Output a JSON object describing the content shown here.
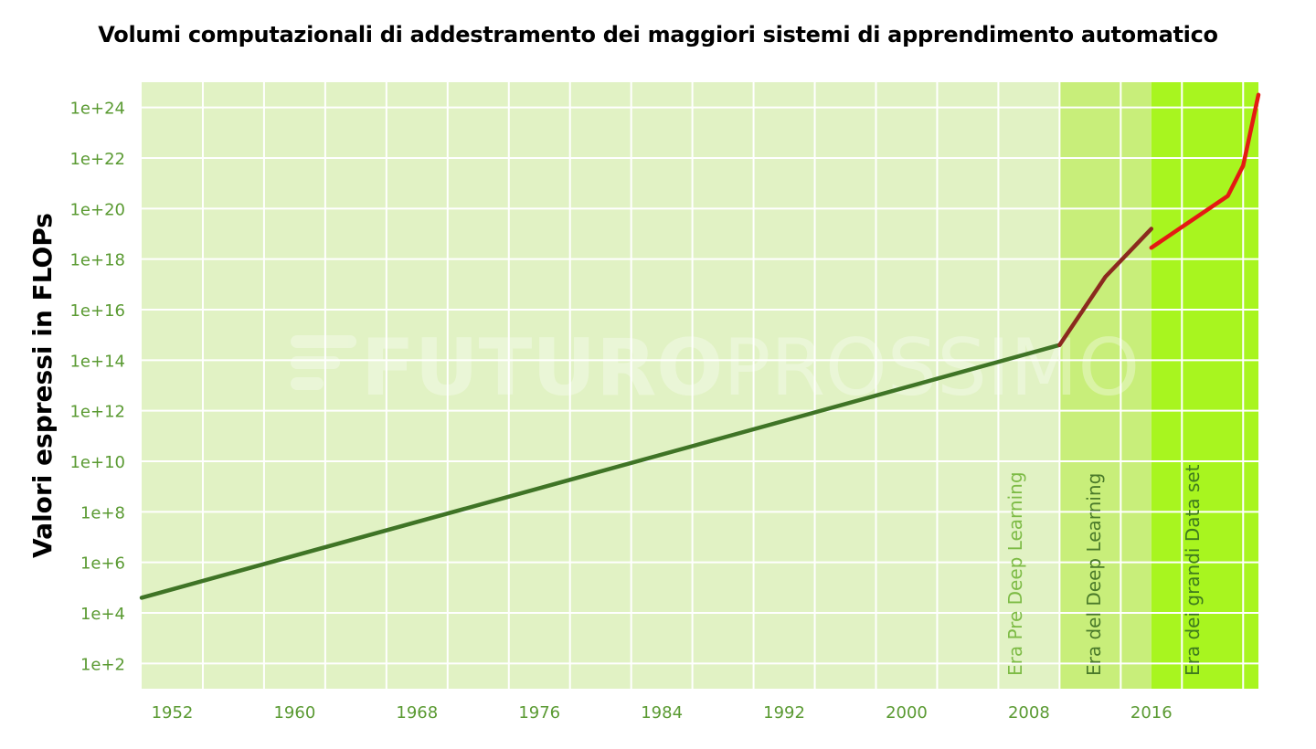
{
  "chart_data": {
    "type": "line",
    "title": "Volumi computazionali di addestramento dei maggiori sistemi di apprendimento automatico",
    "xlabel": "",
    "ylabel": "Valori espressi in FLOPs",
    "y_scale": "log10",
    "xlim": [
      1950,
      2023
    ],
    "ylim_exponent": [
      1,
      25
    ],
    "grid": true,
    "legend": "none",
    "x_ticks": [
      "1952",
      "1960",
      "1968",
      "1976",
      "1984",
      "1992",
      "2000",
      "2008",
      "2016"
    ],
    "y_ticks": [
      "1e+2",
      "1e+4",
      "1e+6",
      "1e+8",
      "1e+10",
      "1e+12",
      "1e+14",
      "1e+16",
      "1e+18",
      "1e+20",
      "1e+22",
      "1e+24"
    ],
    "eras": [
      {
        "label": "Era Pre Deep Learning",
        "x_start": 1950,
        "x_end": 2010,
        "color": "#e1f2c4",
        "label_color": "#7dbb45"
      },
      {
        "label": "Era del Deep Learning",
        "x_start": 2010,
        "x_end": 2016,
        "color": "#c8ee7a",
        "label_color": "#4a7a2a"
      },
      {
        "label": "Era dei grandi Data set",
        "x_start": 2016,
        "x_end": 2023,
        "color": "#a8f51f",
        "label_color": "#3e7a1e"
      }
    ],
    "series": [
      {
        "color": "#3f7426",
        "points": [
          [
            1950,
            4.6
          ],
          [
            2010,
            14.6
          ]
        ]
      },
      {
        "color": "#8b2a1e",
        "points": [
          [
            2010,
            14.6
          ],
          [
            2013,
            17.3
          ],
          [
            2016,
            19.2
          ]
        ]
      },
      {
        "color": "#e41a13",
        "points": [
          [
            2016,
            18.45
          ],
          [
            2021,
            20.5
          ],
          [
            2022,
            21.7
          ],
          [
            2023,
            24.5
          ]
        ]
      }
    ]
  },
  "watermark": {
    "text_bold": "FUTURO",
    "text_light": "PROSSIMO"
  }
}
